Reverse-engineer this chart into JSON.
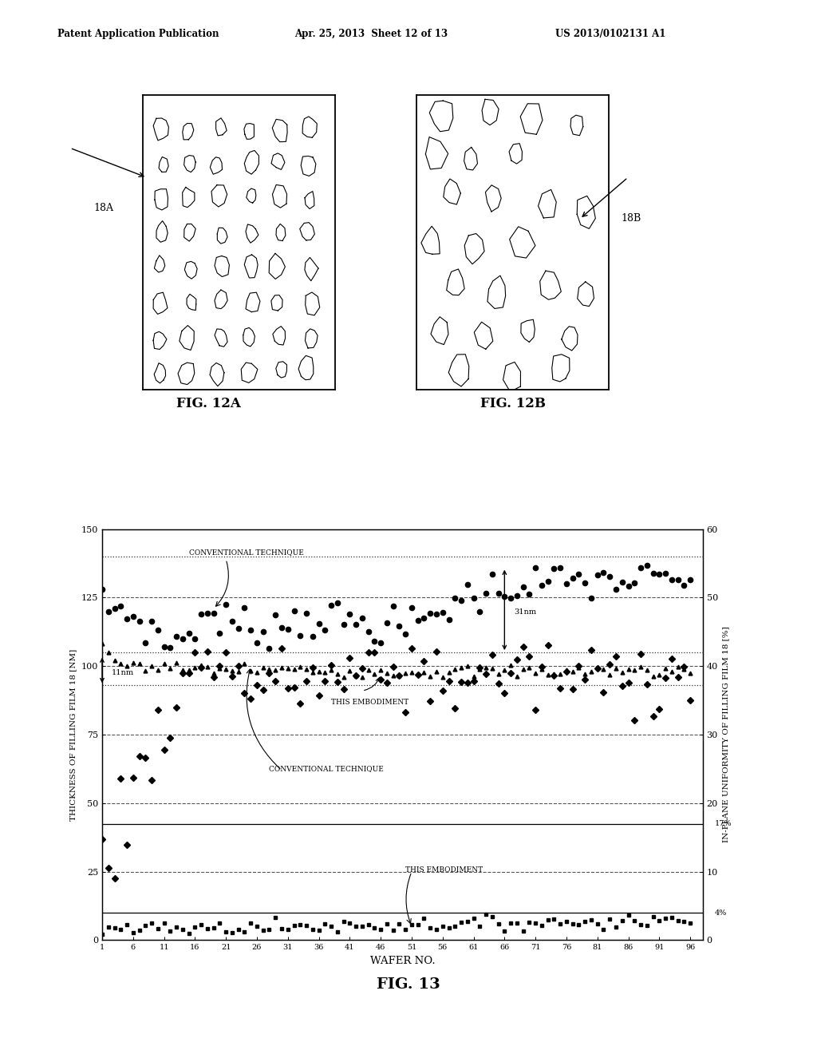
{
  "header_left": "Patent Application Publication",
  "header_mid": "Apr. 25, 2013  Sheet 12 of 13",
  "header_right": "US 2013/0102131 A1",
  "fig12a_label": "FIG. 12A",
  "fig12b_label": "FIG. 12B",
  "fig13_label": "FIG. 13",
  "label_18A": "18A",
  "label_18B": "18B",
  "xlabel": "WAFER NO.",
  "ylabel_left": "THICKNESS OF FILLING FILM 18 [NM]",
  "ylabel_right": "IN-PLANE UNIFORMITY OF FILLING FILM 18 [%]",
  "x_ticks": [
    1,
    6,
    11,
    16,
    21,
    26,
    31,
    36,
    41,
    46,
    51,
    56,
    61,
    66,
    71,
    76,
    81,
    86,
    91,
    96
  ],
  "y_left_ticks": [
    0,
    25,
    50,
    75,
    100,
    125,
    150
  ],
  "y_right_ticks": [
    0,
    10,
    20,
    30,
    40,
    50,
    60
  ],
  "xlim": [
    1,
    98
  ],
  "ylim_left": [
    0,
    150
  ],
  "ylim_right": [
    0,
    60
  ],
  "annotations": {
    "conv_thick": "CONVENTIONAL TECHNIQUE",
    "emb_thick": "THIS EMBODIMENT",
    "conv_unif": "CONVENTIONAL TECHNIQUE",
    "emb_unif": "THIS EMBODIMENT",
    "diff_31nm": "31nm",
    "diff_11nm": "11nm",
    "pct_17": "17%",
    "pct_4": "4%"
  },
  "background": "#ffffff"
}
